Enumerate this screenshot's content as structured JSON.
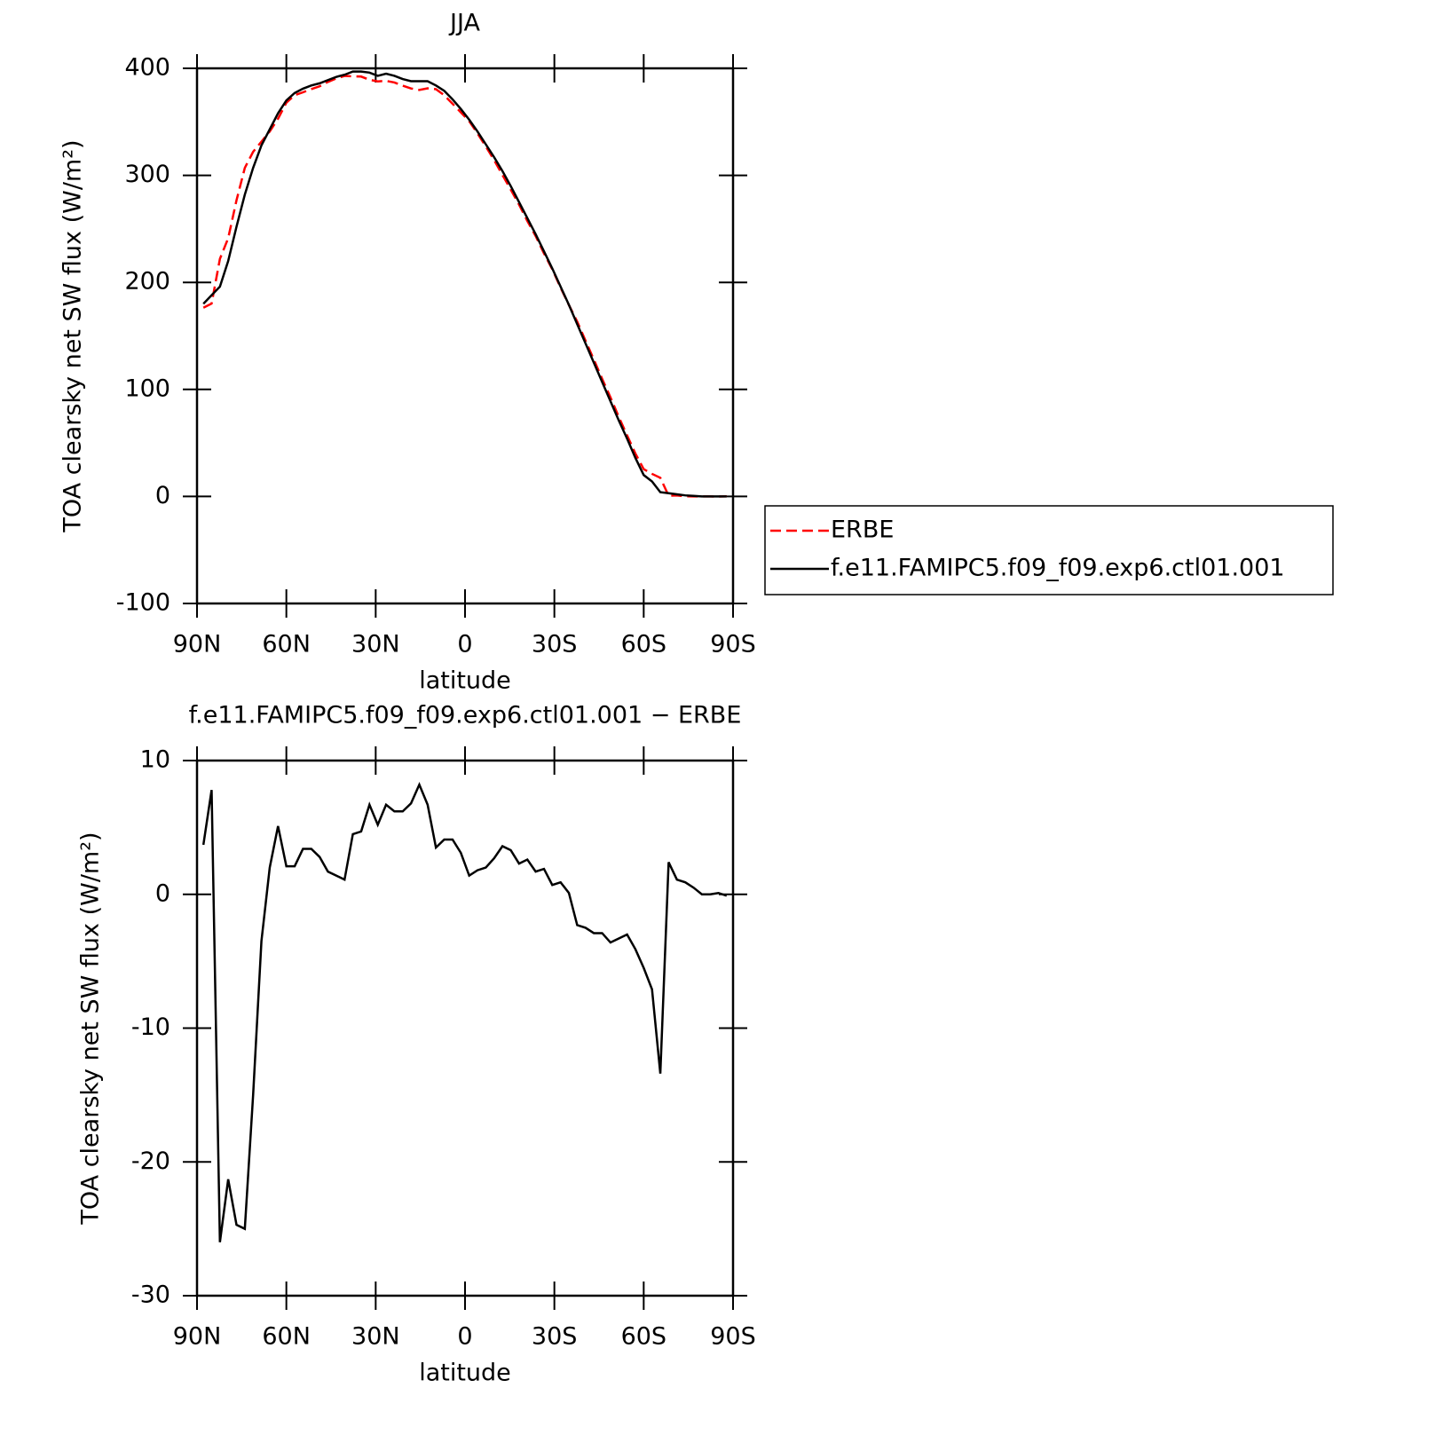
{
  "chart_data": [
    {
      "type": "line",
      "title": "JJA",
      "xlabel": "latitude",
      "ylabel": "TOA clearsky net SW flux (W/m²)",
      "x": [
        87.86,
        85.1,
        82.31,
        79.53,
        76.74,
        73.95,
        71.16,
        68.37,
        65.58,
        62.79,
        60.0,
        57.21,
        54.42,
        51.63,
        48.84,
        46.04,
        43.25,
        40.46,
        37.67,
        34.88,
        32.09,
        29.3,
        26.51,
        23.72,
        20.93,
        18.14,
        15.35,
        12.56,
        9.77,
        6.98,
        4.19,
        1.4,
        -1.4,
        -4.19,
        -6.98,
        -9.77,
        -12.56,
        -15.35,
        -18.14,
        -20.93,
        -23.72,
        -26.51,
        -29.3,
        -32.09,
        -34.88,
        -37.67,
        -40.46,
        -43.25,
        -46.04,
        -48.84,
        -51.63,
        -54.42,
        -57.21,
        -60.0,
        -62.79,
        -65.58,
        -68.37,
        -71.16,
        -73.95,
        -76.74,
        -79.53,
        -82.31,
        -85.1,
        -87.86
      ],
      "series": [
        {
          "name": "ERBE",
          "color": "#ff0000",
          "linestyle": "dashed",
          "values": [
            176.3,
            180.2,
            222,
            241.3,
            276.7,
            307,
            322,
            331.5,
            341,
            352.9,
            367.9,
            374.9,
            377.6,
            380.6,
            383.2,
            387.3,
            390.6,
            392.9,
            392.5,
            392.3,
            389.3,
            387.8,
            388.3,
            386.8,
            383.8,
            381.2,
            379.8,
            381.3,
            380.5,
            374.9,
            366.9,
            358.9,
            350.6,
            339.2,
            327,
            314.3,
            300.4,
            286.7,
            272.7,
            257.4,
            243.3,
            227.1,
            212.3,
            195.1,
            178.9,
            163.3,
            145.5,
            127.9,
            109.9,
            92.6,
            74.3,
            57,
            40.1,
            25.5,
            21.1,
            17.4,
            0.6,
            0.9,
            0.1,
            0,
            0,
            0,
            -0.1,
            0.1
          ]
        },
        {
          "name": "f.e11.FAMIPC5.f09_f09.exp6.ctl01.001",
          "color": "#000000",
          "linestyle": "solid",
          "values": [
            180,
            188,
            196,
            220,
            252,
            282,
            307,
            328,
            343,
            358,
            370,
            377,
            381,
            384,
            386,
            389,
            392,
            394,
            397,
            397,
            396,
            393,
            395,
            393,
            390,
            388,
            388,
            388,
            384,
            379,
            371,
            362,
            352,
            341,
            329,
            317,
            304,
            290,
            275,
            260,
            245,
            229,
            213,
            196,
            179,
            161,
            143,
            125,
            107,
            89,
            71,
            54,
            36,
            20,
            14,
            4,
            3,
            2,
            1,
            0.5,
            0,
            0,
            0,
            0
          ]
        }
      ],
      "xlim": [
        90,
        -90
      ],
      "xticks": [
        {
          "value": 90,
          "label": "90N"
        },
        {
          "value": 60,
          "label": "60N"
        },
        {
          "value": 30,
          "label": "30N"
        },
        0,
        {
          "value": -30,
          "label": "30S"
        },
        {
          "value": -60,
          "label": "60S"
        },
        {
          "value": -90,
          "label": "90S"
        }
      ],
      "ylim": [
        -100,
        400
      ],
      "yticks": [
        -100,
        0,
        100,
        200,
        300,
        400
      ],
      "legend": "right"
    },
    {
      "type": "line",
      "title": "f.e11.FAMIPC5.f09_f09.exp6.ctl01.001 − ERBE",
      "xlabel": "latitude",
      "ylabel": "TOA clearsky net SW flux (W/m²)",
      "x": [
        87.86,
        85.1,
        82.31,
        79.53,
        76.74,
        73.95,
        71.16,
        68.37,
        65.58,
        62.79,
        60.0,
        57.21,
        54.42,
        51.63,
        48.84,
        46.04,
        43.25,
        40.46,
        37.67,
        34.88,
        32.09,
        29.3,
        26.51,
        23.72,
        20.93,
        18.14,
        15.35,
        12.56,
        9.77,
        6.98,
        4.19,
        1.4,
        -1.4,
        -4.19,
        -6.98,
        -9.77,
        -12.56,
        -15.35,
        -18.14,
        -20.93,
        -23.72,
        -26.51,
        -29.3,
        -32.09,
        -34.88,
        -37.67,
        -40.46,
        -43.25,
        -46.04,
        -48.84,
        -51.63,
        -54.42,
        -57.21,
        -60.0,
        -62.79,
        -65.58,
        -68.37,
        -71.16,
        -73.95,
        -76.74,
        -79.53,
        -82.31,
        -85.1,
        -87.86
      ],
      "series": [
        {
          "color": "#000000",
          "linestyle": "solid",
          "values": [
            3.7,
            7.8,
            -26,
            -21.3,
            -24.7,
            -25,
            -15,
            -3.5,
            2,
            5.1,
            2.1,
            2.1,
            3.4,
            3.4,
            2.8,
            1.7,
            1.4,
            1.1,
            4.5,
            4.7,
            6.7,
            5.2,
            6.7,
            6.2,
            6.2,
            6.8,
            8.2,
            6.7,
            3.5,
            4.1,
            4.1,
            3.1,
            1.4,
            1.8,
            2.0,
            2.7,
            3.6,
            3.3,
            2.3,
            2.6,
            1.7,
            1.9,
            0.7,
            0.9,
            0.1,
            -2.3,
            -2.5,
            -2.9,
            -2.9,
            -3.6,
            -3.3,
            -3.0,
            -4.1,
            -5.5,
            -7.1,
            -13.4,
            2.4,
            1.1,
            0.9,
            0.5,
            0,
            0,
            0.1,
            -0.1
          ]
        }
      ],
      "xlim": [
        90,
        -90
      ],
      "xticks": [
        {
          "value": 90,
          "label": "90N"
        },
        {
          "value": 60,
          "label": "60N"
        },
        {
          "value": 30,
          "label": "30N"
        },
        0,
        {
          "value": -30,
          "label": "30S"
        },
        {
          "value": -60,
          "label": "60S"
        },
        {
          "value": -90,
          "label": "90S"
        }
      ],
      "ylim": [
        -30,
        10
      ],
      "yticks": [
        -30,
        -20,
        -10,
        0,
        10
      ]
    }
  ]
}
